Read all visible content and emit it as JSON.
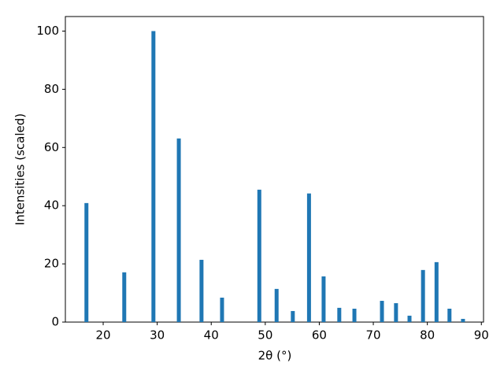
{
  "chart_data": {
    "type": "bar",
    "xlabel": "2θ (°)",
    "ylabel": "Intensities (scaled)",
    "color": "#1f77b4",
    "x": [
      16.9,
      23.9,
      29.3,
      34.0,
      38.2,
      42.0,
      48.9,
      52.1,
      55.1,
      58.1,
      60.8,
      63.7,
      66.5,
      71.6,
      74.2,
      76.7,
      79.2,
      81.7,
      84.1,
      86.6
    ],
    "values": [
      40.9,
      17.1,
      100,
      63.1,
      21.4,
      8.4,
      45.5,
      11.4,
      3.8,
      44.2,
      15.7,
      4.9,
      4.6,
      7.3,
      6.5,
      2.2,
      17.9,
      20.6,
      4.6,
      1.1
    ],
    "xlim": [
      13.0,
      90.4
    ],
    "ylim": [
      0,
      105
    ],
    "xticks": [
      20,
      30,
      40,
      50,
      60,
      70,
      80,
      90
    ],
    "yticks": [
      0,
      20,
      40,
      60,
      80,
      100
    ],
    "grid": false
  }
}
